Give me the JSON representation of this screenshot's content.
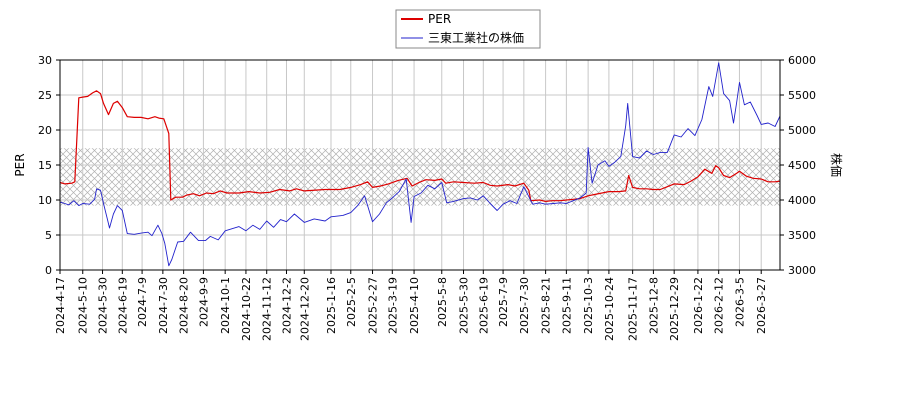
{
  "chart_data": {
    "type": "line",
    "legend_position": "top-center",
    "legend": [
      {
        "label": "PER",
        "color": "#dd0000"
      },
      {
        "label": "三東工業社の株価",
        "color": "#2222cc"
      }
    ],
    "ylabel_left": "PER",
    "ylabel_right": "株価",
    "ylim_left": [
      0,
      30
    ],
    "ylim_right": [
      3000,
      6000
    ],
    "yticks_left": [
      "0",
      "5",
      "10",
      "15",
      "20",
      "25",
      "30"
    ],
    "yticks_right": [
      "3000",
      "3500",
      "4000",
      "4500",
      "5000",
      "5500",
      "6000"
    ],
    "xlim": [
      "2024-04-17",
      "2026-04-15"
    ],
    "grid": true,
    "band": {
      "axis": "left",
      "range": [
        9.2,
        17.4
      ],
      "pattern": "crosshatch"
    },
    "x_tick_labels": [
      "2024-4-17",
      "2024-5-10",
      "2024-5-30",
      "2024-6-19",
      "2024-7-9",
      "2024-7-30",
      "2024-8-20",
      "2024-9-9",
      "2024-10-1",
      "2024-10-22",
      "2024-11-12",
      "2024-12-2",
      "2024-12-20",
      "2025-1-16",
      "2025-2-5",
      "2025-2-27",
      "2025-3-19",
      "2025-4-10",
      "2025-5-8",
      "2025-5-30",
      "2025-6-19",
      "2025-7-9",
      "2025-7-30",
      "2025-8-21",
      "2025-9-11",
      "2025-10-3",
      "2025-10-24",
      "2025-11-17",
      "2025-12-8",
      "2025-12-29",
      "2026-1-22",
      "2026-2-12",
      "2026-3-5",
      "2026-3-27"
    ],
    "series": [
      {
        "name": "PER",
        "axis": "left",
        "color": "#dd0000",
        "points": [
          [
            "2024-04-17",
            12.5
          ],
          [
            "2024-04-22",
            12.3
          ],
          [
            "2024-04-29",
            12.4
          ],
          [
            "2024-05-02",
            12.6
          ],
          [
            "2024-05-06",
            24.6
          ],
          [
            "2024-05-10",
            24.7
          ],
          [
            "2024-05-15",
            24.8
          ],
          [
            "2024-05-20",
            25.3
          ],
          [
            "2024-05-24",
            25.6
          ],
          [
            "2024-05-28",
            25.2
          ],
          [
            "2024-05-31",
            23.8
          ],
          [
            "2024-06-05",
            22.2
          ],
          [
            "2024-06-10",
            23.8
          ],
          [
            "2024-06-14",
            24.1
          ],
          [
            "2024-06-19",
            23.2
          ],
          [
            "2024-06-24",
            21.9
          ],
          [
            "2024-07-01",
            21.8
          ],
          [
            "2024-07-08",
            21.8
          ],
          [
            "2024-07-15",
            21.6
          ],
          [
            "2024-07-22",
            21.9
          ],
          [
            "2024-07-26",
            21.7
          ],
          [
            "2024-07-31",
            21.6
          ],
          [
            "2024-08-05",
            19.5
          ],
          [
            "2024-08-07",
            10.0
          ],
          [
            "2024-08-12",
            10.4
          ],
          [
            "2024-08-19",
            10.4
          ],
          [
            "2024-08-23",
            10.7
          ],
          [
            "2024-08-30",
            10.9
          ],
          [
            "2024-09-05",
            10.6
          ],
          [
            "2024-09-12",
            11.0
          ],
          [
            "2024-09-19",
            10.9
          ],
          [
            "2024-09-26",
            11.3
          ],
          [
            "2024-10-03",
            11.0
          ],
          [
            "2024-10-15",
            11.0
          ],
          [
            "2024-10-25",
            11.2
          ],
          [
            "2024-11-05",
            11.0
          ],
          [
            "2024-11-15",
            11.1
          ],
          [
            "2024-11-25",
            11.5
          ],
          [
            "2024-12-05",
            11.3
          ],
          [
            "2024-12-12",
            11.6
          ],
          [
            "2024-12-20",
            11.3
          ],
          [
            "2025-01-10",
            11.5
          ],
          [
            "2025-01-25",
            11.5
          ],
          [
            "2025-02-05",
            11.8
          ],
          [
            "2025-02-15",
            12.2
          ],
          [
            "2025-02-22",
            12.6
          ],
          [
            "2025-02-27",
            11.8
          ],
          [
            "2025-03-07",
            12.0
          ],
          [
            "2025-03-15",
            12.3
          ],
          [
            "2025-03-25",
            12.8
          ],
          [
            "2025-04-03",
            13.1
          ],
          [
            "2025-04-08",
            12.0
          ],
          [
            "2025-04-15",
            12.5
          ],
          [
            "2025-04-22",
            12.9
          ],
          [
            "2025-05-01",
            12.8
          ],
          [
            "2025-05-08",
            13.0
          ],
          [
            "2025-05-12",
            12.4
          ],
          [
            "2025-05-20",
            12.6
          ],
          [
            "2025-05-30",
            12.5
          ],
          [
            "2025-06-10",
            12.4
          ],
          [
            "2025-06-19",
            12.5
          ],
          [
            "2025-06-26",
            12.1
          ],
          [
            "2025-07-03",
            12.0
          ],
          [
            "2025-07-14",
            12.2
          ],
          [
            "2025-07-21",
            12.0
          ],
          [
            "2025-07-30",
            12.4
          ],
          [
            "2025-08-04",
            11.4
          ],
          [
            "2025-08-06",
            9.9
          ],
          [
            "2025-08-15",
            10.0
          ],
          [
            "2025-08-21",
            9.8
          ],
          [
            "2025-08-28",
            9.9
          ],
          [
            "2025-09-05",
            9.9
          ],
          [
            "2025-09-11",
            10.0
          ],
          [
            "2025-09-18",
            10.1
          ],
          [
            "2025-09-25",
            10.2
          ],
          [
            "2025-10-03",
            10.6
          ],
          [
            "2025-10-10",
            10.8
          ],
          [
            "2025-10-17",
            11.0
          ],
          [
            "2025-10-24",
            11.2
          ],
          [
            "2025-11-03",
            11.2
          ],
          [
            "2025-11-10",
            11.3
          ],
          [
            "2025-11-13",
            13.5
          ],
          [
            "2025-11-17",
            11.8
          ],
          [
            "2025-11-24",
            11.6
          ],
          [
            "2025-12-01",
            11.6
          ],
          [
            "2025-12-08",
            11.5
          ],
          [
            "2025-12-15",
            11.5
          ],
          [
            "2025-12-22",
            11.9
          ],
          [
            "2025-12-29",
            12.3
          ],
          [
            "2026-01-08",
            12.2
          ],
          [
            "2026-01-15",
            12.7
          ],
          [
            "2026-01-22",
            13.3
          ],
          [
            "2026-01-29",
            14.4
          ],
          [
            "2026-02-05",
            13.8
          ],
          [
            "2026-02-09",
            14.9
          ],
          [
            "2026-02-12",
            14.6
          ],
          [
            "2026-02-17",
            13.5
          ],
          [
            "2026-02-23",
            13.2
          ],
          [
            "2026-03-02",
            13.8
          ],
          [
            "2026-03-05",
            14.1
          ],
          [
            "2026-03-12",
            13.4
          ],
          [
            "2026-03-19",
            13.1
          ],
          [
            "2026-03-27",
            13.0
          ],
          [
            "2026-04-03",
            12.6
          ],
          [
            "2026-04-10",
            12.6
          ],
          [
            "2026-04-15",
            12.7
          ]
        ]
      },
      {
        "name": "三東工業社の株価",
        "axis": "right",
        "color": "#2222cc",
        "points": [
          [
            "2024-04-17",
            3970
          ],
          [
            "2024-04-22",
            3950
          ],
          [
            "2024-04-26",
            3930
          ],
          [
            "2024-05-01",
            3990
          ],
          [
            "2024-05-06",
            3920
          ],
          [
            "2024-05-10",
            3950
          ],
          [
            "2024-05-17",
            3940
          ],
          [
            "2024-05-22",
            4010
          ],
          [
            "2024-05-24",
            4160
          ],
          [
            "2024-05-28",
            4140
          ],
          [
            "2024-05-31",
            3950
          ],
          [
            "2024-06-04",
            3720
          ],
          [
            "2024-06-06",
            3600
          ],
          [
            "2024-06-10",
            3800
          ],
          [
            "2024-06-14",
            3920
          ],
          [
            "2024-06-19",
            3850
          ],
          [
            "2024-06-24",
            3520
          ],
          [
            "2024-07-01",
            3510
          ],
          [
            "2024-07-09",
            3530
          ],
          [
            "2024-07-15",
            3540
          ],
          [
            "2024-07-19",
            3490
          ],
          [
            "2024-07-25",
            3640
          ],
          [
            "2024-07-29",
            3520
          ],
          [
            "2024-08-01",
            3380
          ],
          [
            "2024-08-05",
            3060
          ],
          [
            "2024-08-08",
            3150
          ],
          [
            "2024-08-14",
            3400
          ],
          [
            "2024-08-20",
            3410
          ],
          [
            "2024-08-27",
            3540
          ],
          [
            "2024-09-04",
            3420
          ],
          [
            "2024-09-11",
            3420
          ],
          [
            "2024-09-16",
            3480
          ],
          [
            "2024-09-24",
            3430
          ],
          [
            "2024-10-01",
            3560
          ],
          [
            "2024-10-08",
            3590
          ],
          [
            "2024-10-15",
            3620
          ],
          [
            "2024-10-22",
            3560
          ],
          [
            "2024-10-29",
            3640
          ],
          [
            "2024-11-05",
            3580
          ],
          [
            "2024-11-12",
            3700
          ],
          [
            "2024-11-19",
            3610
          ],
          [
            "2024-11-26",
            3720
          ],
          [
            "2024-12-02",
            3690
          ],
          [
            "2024-12-10",
            3800
          ],
          [
            "2024-12-20",
            3680
          ],
          [
            "2024-12-30",
            3730
          ],
          [
            "2025-01-10",
            3700
          ],
          [
            "2025-01-16",
            3760
          ],
          [
            "2025-01-28",
            3780
          ],
          [
            "2025-02-05",
            3820
          ],
          [
            "2025-02-12",
            3920
          ],
          [
            "2025-02-19",
            4060
          ],
          [
            "2025-02-27",
            3690
          ],
          [
            "2025-03-06",
            3800
          ],
          [
            "2025-03-13",
            3960
          ],
          [
            "2025-03-19",
            4030
          ],
          [
            "2025-03-26",
            4120
          ],
          [
            "2025-04-02",
            4300
          ],
          [
            "2025-04-07",
            3680
          ],
          [
            "2025-04-10",
            4050
          ],
          [
            "2025-04-17",
            4100
          ],
          [
            "2025-04-24",
            4210
          ],
          [
            "2025-05-01",
            4160
          ],
          [
            "2025-05-08",
            4250
          ],
          [
            "2025-05-13",
            3960
          ],
          [
            "2025-05-20",
            3980
          ],
          [
            "2025-05-30",
            4020
          ],
          [
            "2025-06-06",
            4030
          ],
          [
            "2025-06-13",
            4000
          ],
          [
            "2025-06-19",
            4060
          ],
          [
            "2025-06-26",
            3950
          ],
          [
            "2025-07-03",
            3850
          ],
          [
            "2025-07-09",
            3940
          ],
          [
            "2025-07-16",
            3990
          ],
          [
            "2025-07-23",
            3950
          ],
          [
            "2025-07-30",
            4190
          ],
          [
            "2025-08-05",
            4020
          ],
          [
            "2025-08-08",
            3940
          ],
          [
            "2025-08-15",
            3960
          ],
          [
            "2025-08-21",
            3940
          ],
          [
            "2025-08-29",
            3950
          ],
          [
            "2025-09-05",
            3960
          ],
          [
            "2025-09-11",
            3950
          ],
          [
            "2025-09-18",
            3990
          ],
          [
            "2025-09-25",
            4030
          ],
          [
            "2025-10-01",
            4100
          ],
          [
            "2025-10-03",
            4750
          ],
          [
            "2025-10-07",
            4240
          ],
          [
            "2025-10-13",
            4500
          ],
          [
            "2025-10-20",
            4560
          ],
          [
            "2025-10-24",
            4480
          ],
          [
            "2025-10-30",
            4540
          ],
          [
            "2025-11-05",
            4620
          ],
          [
            "2025-11-10",
            5060
          ],
          [
            "2025-11-12",
            5380
          ],
          [
            "2025-11-17",
            4620
          ],
          [
            "2025-11-24",
            4600
          ],
          [
            "2025-12-01",
            4700
          ],
          [
            "2025-12-08",
            4650
          ],
          [
            "2025-12-15",
            4680
          ],
          [
            "2025-12-22",
            4680
          ],
          [
            "2025-12-29",
            4930
          ],
          [
            "2026-01-05",
            4900
          ],
          [
            "2026-01-12",
            5020
          ],
          [
            "2026-01-19",
            4920
          ],
          [
            "2026-01-26",
            5150
          ],
          [
            "2026-02-02",
            5620
          ],
          [
            "2026-02-06",
            5480
          ],
          [
            "2026-02-12",
            5960
          ],
          [
            "2026-02-17",
            5520
          ],
          [
            "2026-02-23",
            5420
          ],
          [
            "2026-02-27",
            5100
          ],
          [
            "2026-03-02",
            5380
          ],
          [
            "2026-03-05",
            5680
          ],
          [
            "2026-03-10",
            5360
          ],
          [
            "2026-03-16",
            5400
          ],
          [
            "2026-03-23",
            5200
          ],
          [
            "2026-03-27",
            5080
          ],
          [
            "2026-04-03",
            5100
          ],
          [
            "2026-04-10",
            5050
          ],
          [
            "2026-04-15",
            5200
          ]
        ]
      }
    ]
  }
}
